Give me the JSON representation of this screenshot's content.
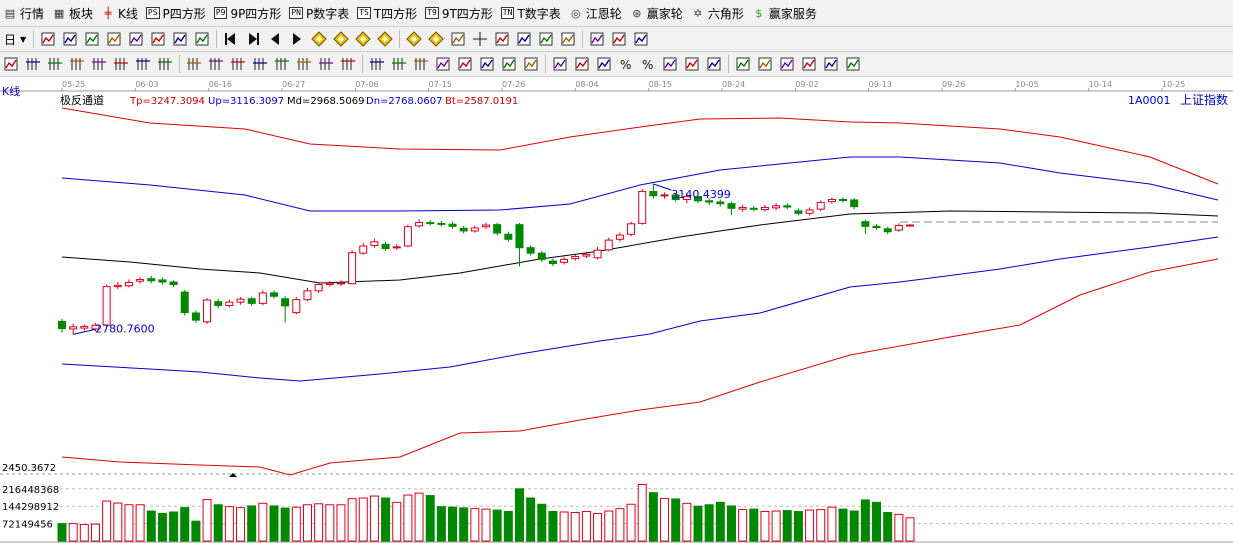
{
  "menu": {
    "items": [
      {
        "label": "行情",
        "badge": "",
        "icon": "market-icon"
      },
      {
        "label": "板块",
        "badge": "",
        "icon": "sector-icon"
      },
      {
        "label": "K线",
        "badge": "",
        "icon": "kline-icon"
      },
      {
        "label": "P四方形",
        "badge": "PS",
        "icon": ""
      },
      {
        "label": "9P四方形",
        "badge": "P9",
        "icon": ""
      },
      {
        "label": "P数字表",
        "badge": "PN",
        "icon": ""
      },
      {
        "label": "T四方形",
        "badge": "TS",
        "icon": ""
      },
      {
        "label": "9T四方形",
        "badge": "T9",
        "icon": ""
      },
      {
        "label": "T数字表",
        "badge": "TN",
        "icon": ""
      },
      {
        "label": "江恩轮",
        "badge": "",
        "icon": "gann-wheel-icon"
      },
      {
        "label": "赢家轮",
        "badge": "",
        "icon": "winner-wheel-icon"
      },
      {
        "label": "六角形",
        "badge": "",
        "icon": "hexagon-icon"
      },
      {
        "label": "赢家服务",
        "badge": "",
        "icon": "dollar-icon"
      }
    ]
  },
  "toolbar1": {
    "period_label": "日",
    "buttons": [
      "grid-icon",
      "list-icon",
      "kline-icon",
      "bars-icon",
      "line-icon",
      "candle-icon",
      "zigzag-icon",
      "flag-icon",
      "first-icon",
      "last-icon",
      "prev-icon",
      "next-icon",
      "diamond-1-icon",
      "diamond-2-icon",
      "diamond-3-icon",
      "diamond-4-icon",
      "diamond-5-icon",
      "diamond-6-icon",
      "hand-icon",
      "crosshair-icon",
      "filter-icon",
      "zoom-icon",
      "calendar-icon",
      "calculator-icon",
      "book-icon",
      "export-icon",
      "truck-icon"
    ]
  },
  "toolbar2": {
    "buttons": [
      "pencil-icon",
      "hash-1-icon",
      "hash-2-icon",
      "hash-3-icon",
      "hash-4-icon",
      "hash-5-icon",
      "hash-6-icon",
      "hash-7-icon",
      "hash-8-icon",
      "hash-9-icon",
      "hash-10-icon",
      "hash-11-icon",
      "hash-12-icon",
      "hash-13-icon",
      "hash-14-icon",
      "hash-15-icon",
      "hash-16-icon",
      "hash-17-icon",
      "hash-18-icon",
      "fib-icon",
      "fan-icon",
      "arc-icon",
      "slash-icon",
      "wave-icon",
      "box-icon",
      "parallel-icon",
      "table-icon",
      "percent-icon",
      "percent-2-icon",
      "coin-icon",
      "coin-2-icon",
      "text-icon",
      "gold-icon",
      "angle-icon",
      "arrow-icon",
      "arrow-2-icon",
      "bars-2-icon",
      "sigma-icon"
    ]
  },
  "chart": {
    "kline_label": "K线",
    "indicator_name": "极反通道",
    "tp": "Tp=3247.3094",
    "up": "Up=3116.3097",
    "md": "Md=2968.5069",
    "dn": "Dn=2768.0607",
    "bt": "Bt=2587.0191",
    "symbol": "1A0001",
    "symbol_name": "上证指数",
    "dates": [
      "05-25",
      "06-03",
      "06-16",
      "06-27",
      "07-06",
      "07-15",
      "07-26",
      "08-04",
      "08-15",
      "08-24",
      "09-02",
      "09-13",
      "09-26",
      "10-05",
      "10-14",
      "10-25"
    ],
    "low_label": "2780.7600",
    "high_label": "3140.4399",
    "price_min_label": "2450.3672",
    "vol_labels": [
      "216448368",
      "144298912",
      "72149456"
    ],
    "colors": {
      "up": "#e0001e",
      "down": "#008800",
      "band_outer": "#e00000",
      "band_inner": "#0000cc",
      "mid": "#000000"
    }
  },
  "chart_data": {
    "type": "candlestick",
    "y_range": [
      2450,
      3300
    ],
    "series": [
      {
        "name": "Tp",
        "values": []
      },
      {
        "name": "Up",
        "values": []
      },
      {
        "name": "Md",
        "values": []
      },
      {
        "name": "Dn",
        "values": []
      },
      {
        "name": "Bt",
        "values": []
      }
    ],
    "candles": [
      {
        "o": 2812,
        "c": 2795,
        "h": 2818,
        "l": 2785
      },
      {
        "o": 2794,
        "c": 2799,
        "h": 2806,
        "l": 2781
      },
      {
        "o": 2796,
        "c": 2800,
        "h": 2805,
        "l": 2790
      },
      {
        "o": 2794,
        "c": 2803,
        "h": 2808,
        "l": 2788
      },
      {
        "o": 2803,
        "c": 2895,
        "h": 2900,
        "l": 2800
      },
      {
        "o": 2895,
        "c": 2898,
        "h": 2906,
        "l": 2889
      },
      {
        "o": 2897,
        "c": 2905,
        "h": 2912,
        "l": 2893
      },
      {
        "o": 2908,
        "c": 2912,
        "h": 2918,
        "l": 2902
      },
      {
        "o": 2914,
        "c": 2909,
        "h": 2921,
        "l": 2903
      },
      {
        "o": 2911,
        "c": 2906,
        "h": 2917,
        "l": 2900
      },
      {
        "o": 2906,
        "c": 2900,
        "h": 2910,
        "l": 2894
      },
      {
        "o": 2882,
        "c": 2833,
        "h": 2887,
        "l": 2826
      },
      {
        "o": 2832,
        "c": 2815,
        "h": 2838,
        "l": 2809
      },
      {
        "o": 2811,
        "c": 2863,
        "h": 2868,
        "l": 2806
      },
      {
        "o": 2859,
        "c": 2850,
        "h": 2866,
        "l": 2843
      },
      {
        "o": 2850,
        "c": 2858,
        "h": 2864,
        "l": 2845
      },
      {
        "o": 2858,
        "c": 2865,
        "h": 2870,
        "l": 2852
      },
      {
        "o": 2866,
        "c": 2855,
        "h": 2871,
        "l": 2849
      },
      {
        "o": 2855,
        "c": 2880,
        "h": 2886,
        "l": 2850
      },
      {
        "o": 2880,
        "c": 2872,
        "h": 2886,
        "l": 2866
      },
      {
        "o": 2866,
        "c": 2849,
        "h": 2872,
        "l": 2810
      },
      {
        "o": 2833,
        "c": 2864,
        "h": 2870,
        "l": 2829
      },
      {
        "o": 2864,
        "c": 2885,
        "h": 2892,
        "l": 2860
      },
      {
        "o": 2885,
        "c": 2900,
        "h": 2905,
        "l": 2880
      },
      {
        "o": 2900,
        "c": 2903,
        "h": 2908,
        "l": 2895
      },
      {
        "o": 2903,
        "c": 2904,
        "h": 2910,
        "l": 2897
      },
      {
        "o": 2902,
        "c": 2976,
        "h": 2982,
        "l": 2900
      },
      {
        "o": 2975,
        "c": 2992,
        "h": 3000,
        "l": 2971
      },
      {
        "o": 2993,
        "c": 3002,
        "h": 3009,
        "l": 2988
      },
      {
        "o": 2996,
        "c": 2986,
        "h": 3002,
        "l": 2980
      },
      {
        "o": 2988,
        "c": 2990,
        "h": 2996,
        "l": 2983
      },
      {
        "o": 2992,
        "c": 3038,
        "h": 3043,
        "l": 2989
      },
      {
        "o": 3040,
        "c": 3048,
        "h": 3056,
        "l": 3036
      },
      {
        "o": 3048,
        "c": 3046,
        "h": 3054,
        "l": 3041
      },
      {
        "o": 3046,
        "c": 3044,
        "h": 3052,
        "l": 3038
      },
      {
        "o": 3044,
        "c": 3039,
        "h": 3050,
        "l": 3033
      },
      {
        "o": 3034,
        "c": 3028,
        "h": 3040,
        "l": 3022
      },
      {
        "o": 3028,
        "c": 3035,
        "h": 3041,
        "l": 3024
      },
      {
        "o": 3038,
        "c": 3042,
        "h": 3048,
        "l": 3033
      },
      {
        "o": 3043,
        "c": 3023,
        "h": 3048,
        "l": 3017
      },
      {
        "o": 3020,
        "c": 3008,
        "h": 3026,
        "l": 3002
      },
      {
        "o": 3043,
        "c": 2988,
        "h": 3047,
        "l": 2943
      },
      {
        "o": 2988,
        "c": 2975,
        "h": 2994,
        "l": 2969
      },
      {
        "o": 2975,
        "c": 2960,
        "h": 2980,
        "l": 2954
      },
      {
        "o": 2956,
        "c": 2950,
        "h": 2962,
        "l": 2944
      },
      {
        "o": 2953,
        "c": 2960,
        "h": 2966,
        "l": 2948
      },
      {
        "o": 2962,
        "c": 2967,
        "h": 2972,
        "l": 2957
      },
      {
        "o": 2968,
        "c": 2972,
        "h": 2978,
        "l": 2963
      },
      {
        "o": 2964,
        "c": 2982,
        "h": 2990,
        "l": 2960
      },
      {
        "o": 2983,
        "c": 3006,
        "h": 3012,
        "l": 2979
      },
      {
        "o": 3008,
        "c": 3018,
        "h": 3024,
        "l": 3002
      },
      {
        "o": 3020,
        "c": 3045,
        "h": 3050,
        "l": 3015
      },
      {
        "o": 3046,
        "c": 3122,
        "h": 3128,
        "l": 3043
      },
      {
        "o": 3122,
        "c": 3112,
        "h": 3140,
        "l": 3105
      },
      {
        "o": 3112,
        "c": 3114,
        "h": 3120,
        "l": 3105
      },
      {
        "o": 3114,
        "c": 3103,
        "h": 3119,
        "l": 3098
      },
      {
        "o": 3103,
        "c": 3110,
        "h": 3118,
        "l": 3094
      },
      {
        "o": 3110,
        "c": 3100,
        "h": 3116,
        "l": 3094
      },
      {
        "o": 3100,
        "c": 3097,
        "h": 3106,
        "l": 3090
      },
      {
        "o": 3097,
        "c": 3093,
        "h": 3103,
        "l": 3086
      },
      {
        "o": 3093,
        "c": 3082,
        "h": 3098,
        "l": 3066
      },
      {
        "o": 3080,
        "c": 3084,
        "h": 3090,
        "l": 3074
      },
      {
        "o": 3082,
        "c": 3081,
        "h": 3088,
        "l": 3075
      },
      {
        "o": 3079,
        "c": 3084,
        "h": 3090,
        "l": 3074
      },
      {
        "o": 3083,
        "c": 3088,
        "h": 3094,
        "l": 3078
      },
      {
        "o": 3088,
        "c": 3085,
        "h": 3094,
        "l": 3080
      },
      {
        "o": 3076,
        "c": 3070,
        "h": 3082,
        "l": 3065
      },
      {
        "o": 3070,
        "c": 3078,
        "h": 3084,
        "l": 3065
      },
      {
        "o": 3080,
        "c": 3096,
        "h": 3101,
        "l": 3075
      },
      {
        "o": 3098,
        "c": 3103,
        "h": 3108,
        "l": 3093
      },
      {
        "o": 3103,
        "c": 3102,
        "h": 3108,
        "l": 3096
      },
      {
        "o": 3102,
        "c": 3086,
        "h": 3106,
        "l": 3080
      },
      {
        "o": 3050,
        "c": 3039,
        "h": 3055,
        "l": 3021
      },
      {
        "o": 3039,
        "c": 3036,
        "h": 3044,
        "l": 3030
      },
      {
        "o": 3033,
        "c": 3026,
        "h": 3038,
        "l": 3020
      },
      {
        "o": 3030,
        "c": 3041,
        "h": 3046,
        "l": 3026
      },
      {
        "o": 3041,
        "c": 3042,
        "h": 3044,
        "l": 3040
      }
    ],
    "volume_labels": [
      "216448368",
      "144298912",
      "72149456"
    ],
    "volumes": [
      72,
      72,
      68,
      70,
      165,
      157,
      150,
      150,
      124,
      114,
      120,
      138,
      82,
      172,
      150,
      142,
      138,
      145,
      156,
      145,
      136,
      140,
      150,
      154,
      150,
      150,
      175,
      178,
      186,
      178,
      160,
      190,
      198,
      188,
      142,
      140,
      137,
      134,
      132,
      128,
      122,
      216,
      178,
      152,
      122,
      120,
      118,
      122,
      114,
      124,
      134,
      152,
      234,
      200,
      176,
      174,
      156,
      144,
      150,
      160,
      145,
      130,
      132,
      122,
      124,
      126,
      122,
      128,
      130,
      140,
      132,
      124,
      170,
      160,
      118,
      110,
      96
    ],
    "vol_max": 240
  }
}
